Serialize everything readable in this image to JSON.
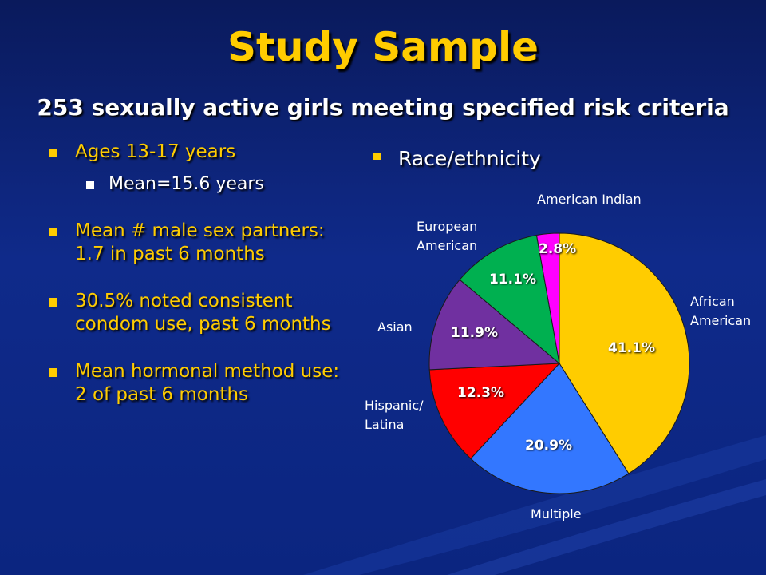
{
  "slide": {
    "title": "Study Sample",
    "subtitle": "253 sexually active girls meeting specified risk criteria"
  },
  "bullets": {
    "ages": "Ages 13-17 years",
    "mean_age": "Mean=15.6 years",
    "partners": "Mean # male sex partners: 1.7 in past 6 months",
    "condom": "30.5% noted consistent condom use, past 6 months",
    "hormonal": "Mean hormonal method use: 2 of past 6 months"
  },
  "race_heading": "Race/ethnicity",
  "chart_data": {
    "type": "pie",
    "title": "",
    "categories": [
      "African American",
      "Multiple",
      "Hispanic/ Latina",
      "Asian",
      "European American",
      "American Indian"
    ],
    "values": [
      41.1,
      20.9,
      12.3,
      11.9,
      11.1,
      2.8
    ],
    "value_labels": [
      "41.1%",
      "20.9%",
      "12.3%",
      "11.9%",
      "11.1%",
      "2.8%"
    ],
    "colors": [
      "#ffcc00",
      "#3377ff",
      "#ff0000",
      "#7030a0",
      "#00b050",
      "#ff00ff"
    ],
    "start": "12 o'clock, clockwise",
    "legend": "none (labels outside slices)"
  }
}
